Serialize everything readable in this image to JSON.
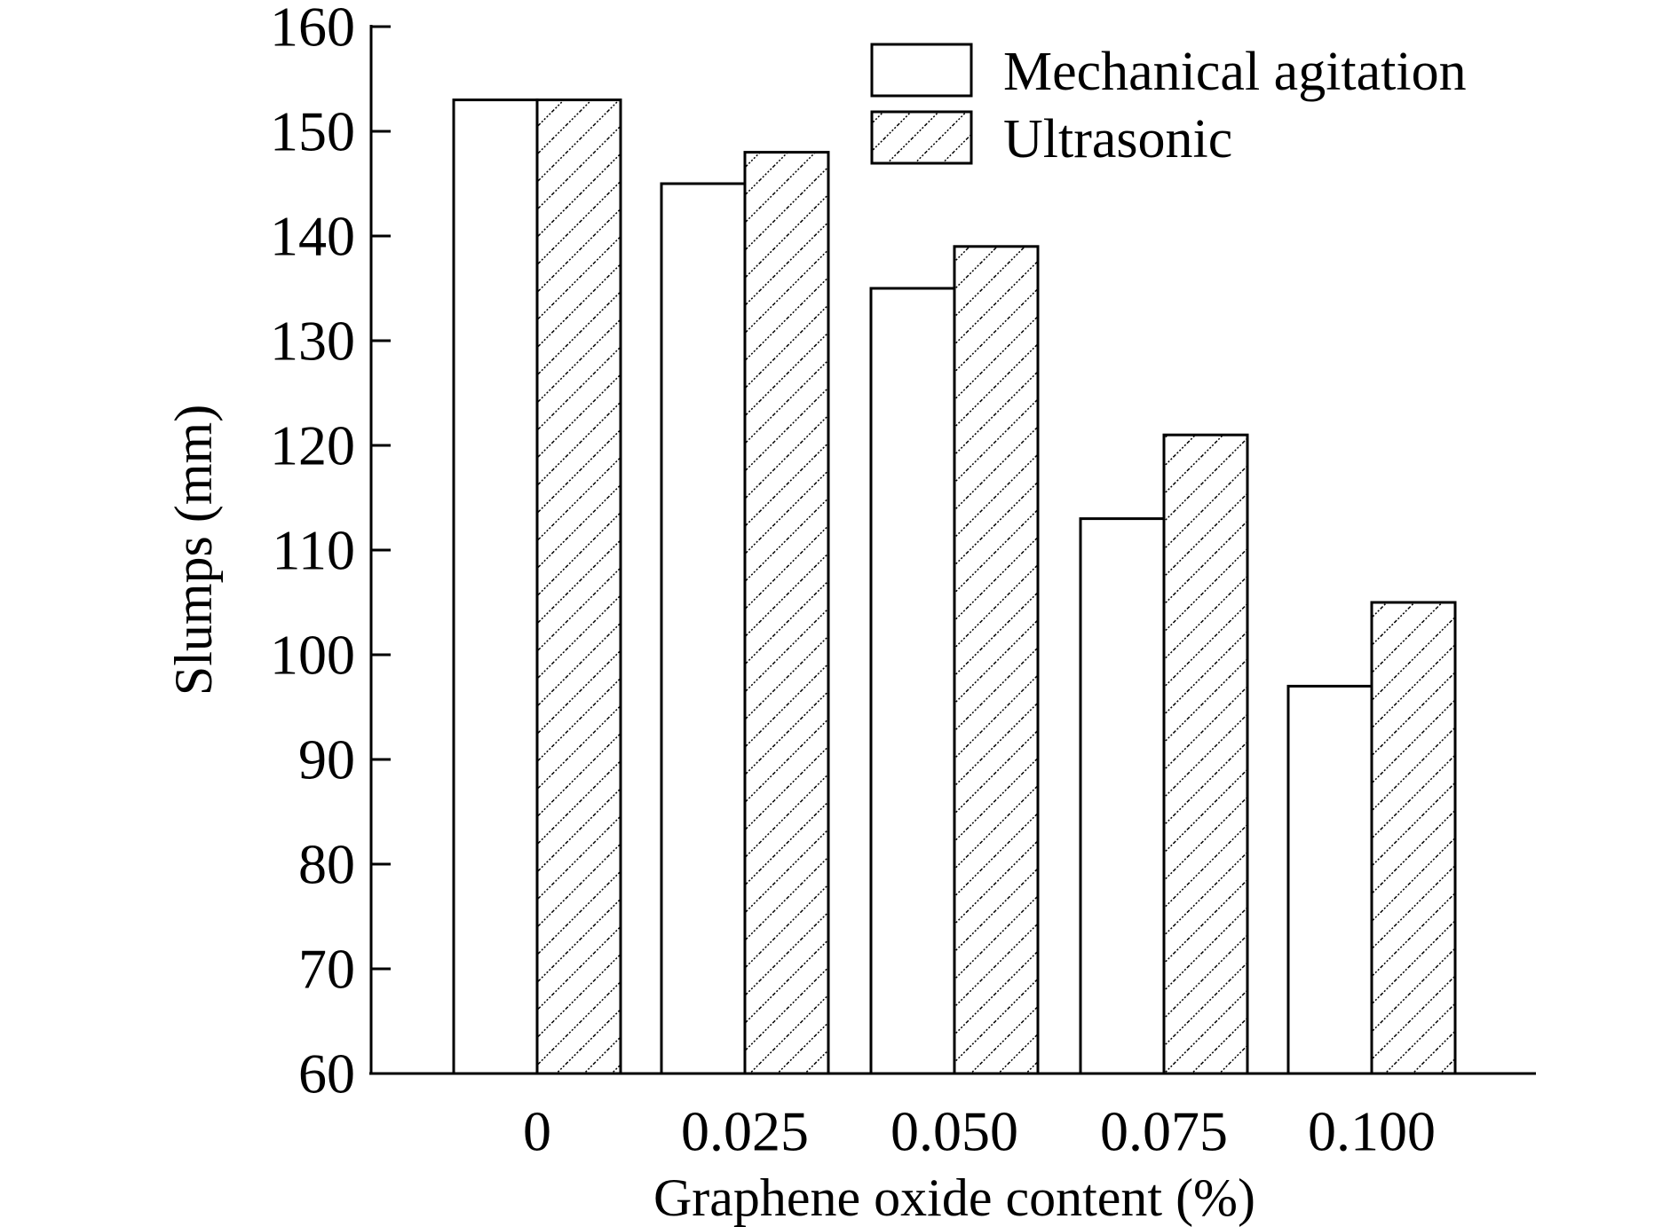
{
  "chart_data": {
    "type": "bar",
    "title": "",
    "xlabel": "Graphene oxide content (%)",
    "ylabel": "Slumps (mm)",
    "categories": [
      "0",
      "0.025",
      "0.050",
      "0.075",
      "0.100"
    ],
    "series": [
      {
        "name": "Mechanical agitation",
        "values": [
          153,
          145,
          135,
          113,
          97
        ],
        "fill": "none"
      },
      {
        "name": "Ultrasonic",
        "values": [
          153,
          148,
          139,
          121,
          105
        ],
        "fill": "diagonal-hatch"
      }
    ],
    "ylim": [
      60,
      160
    ],
    "yticks": [
      "60",
      "70",
      "80",
      "90",
      "100",
      "110",
      "120",
      "130",
      "140",
      "150",
      "160"
    ],
    "grid": false,
    "legend_position": "top-right",
    "colors": {
      "stroke": "#000000",
      "background": "#ffffff"
    }
  }
}
